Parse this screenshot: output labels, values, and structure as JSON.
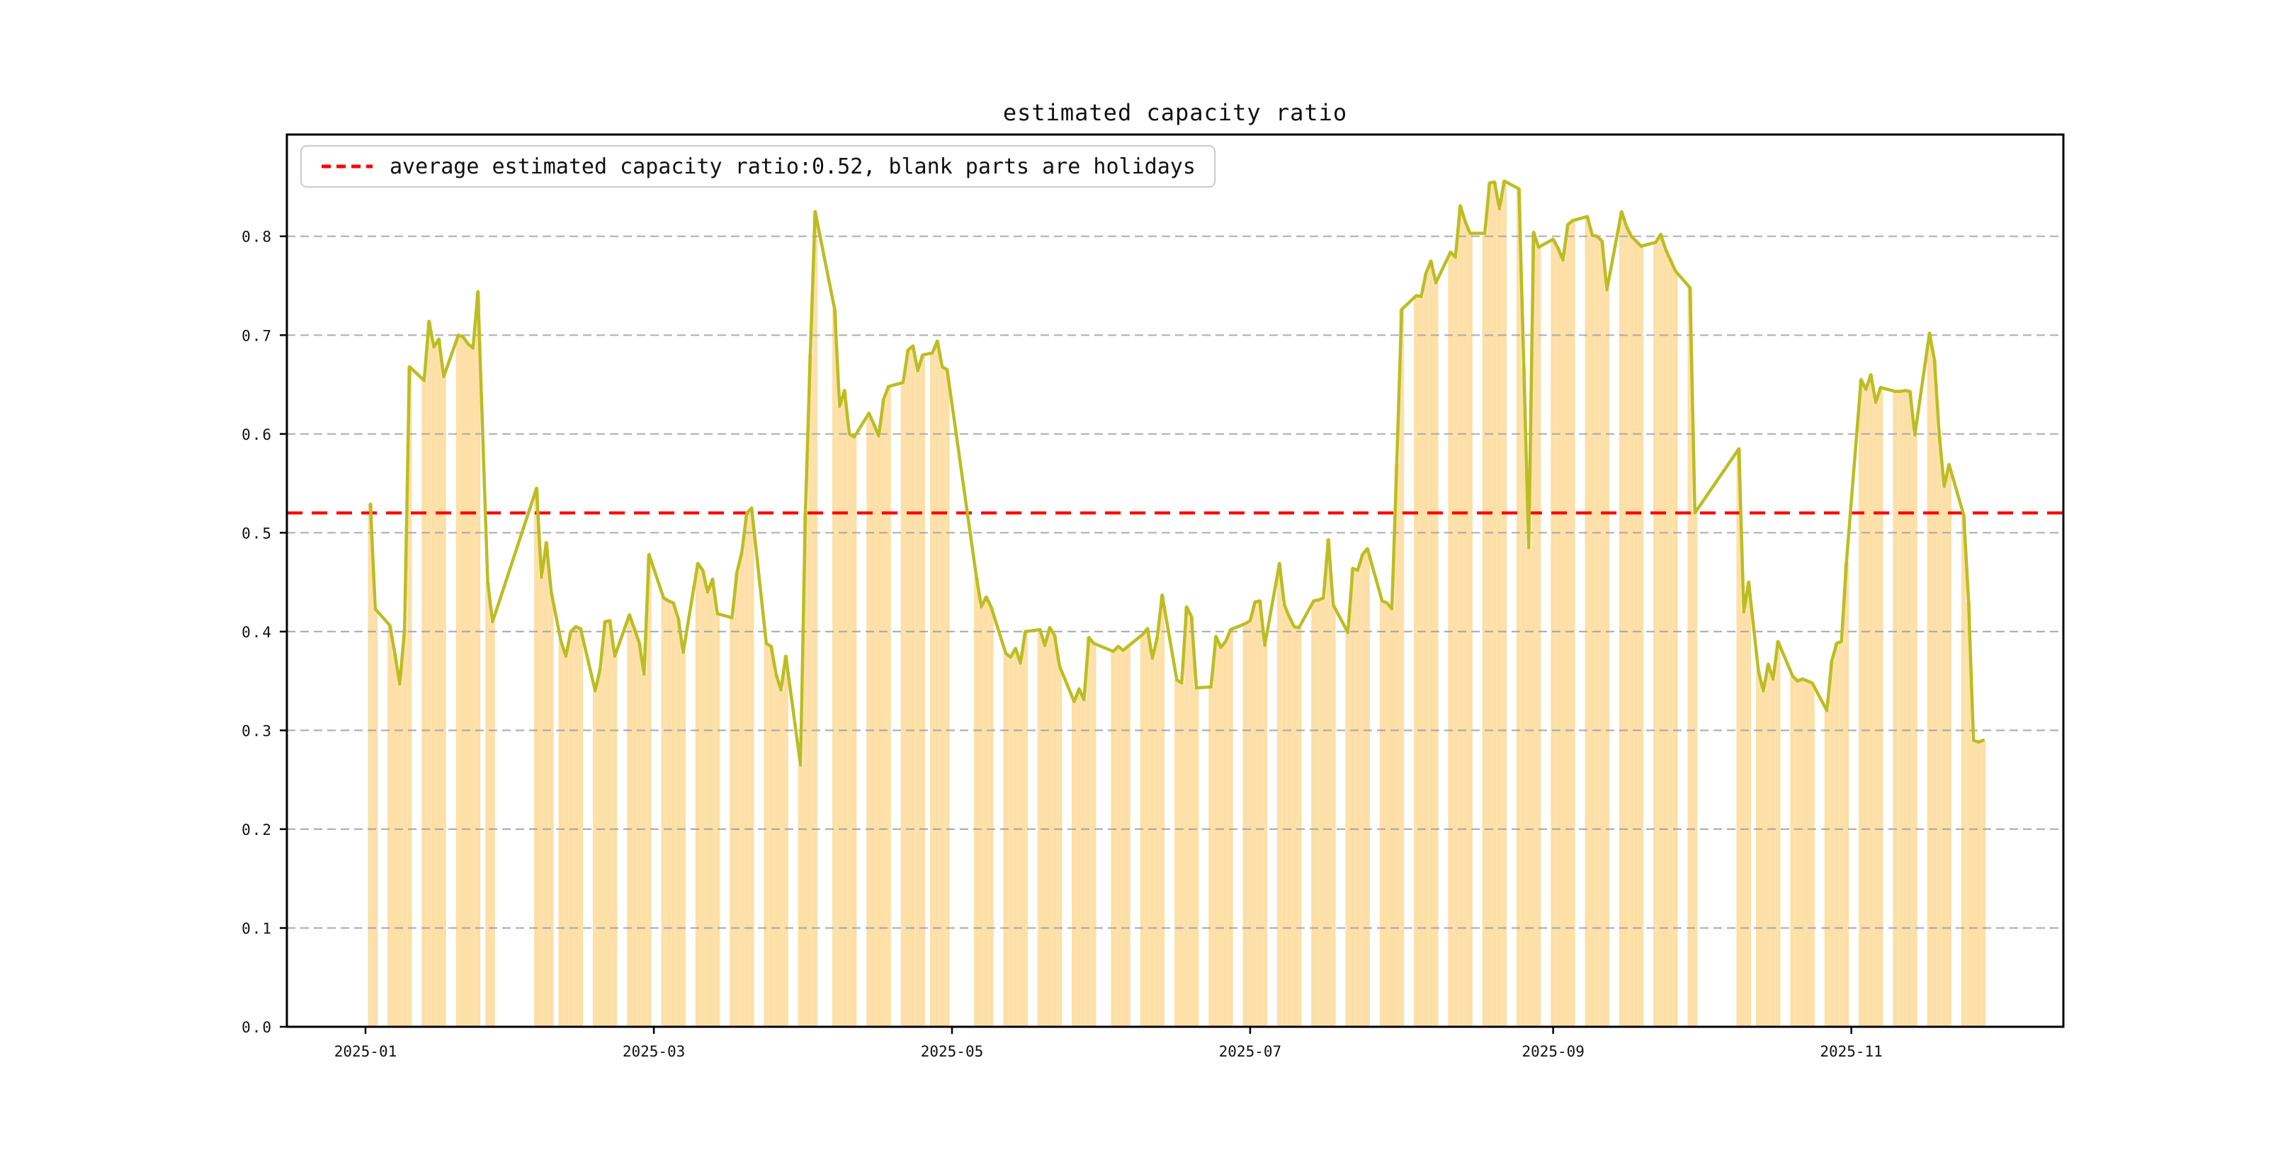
{
  "figure": {
    "background": "#ffffff",
    "title": "estimated capacity ratio"
  },
  "chart_data": {
    "type": "bar",
    "subtype": "daily bar + line, gaps on holidays",
    "title": "estimated capacity ratio",
    "legend": {
      "label": "average estimated capacity ratio:0.52, blank parts are holidays",
      "line_color": "#ff0000",
      "line_style": "dashed",
      "position": "upper left"
    },
    "average_value": 0.52,
    "grid": true,
    "ylim": [
      0.0,
      0.903
    ],
    "y_ticks": [
      "0.0",
      "0.1",
      "0.2",
      "0.3",
      "0.4",
      "0.5",
      "0.6",
      "0.7",
      "0.8"
    ],
    "x_ticks": [
      {
        "date": "2025-01-01",
        "label": "2025-01"
      },
      {
        "date": "2025-03-01",
        "label": "2025-03"
      },
      {
        "date": "2025-05-01",
        "label": "2025-05"
      },
      {
        "date": "2025-07-01",
        "label": "2025-07"
      },
      {
        "date": "2025-09-01",
        "label": "2025-09"
      },
      {
        "date": "2025-11-01",
        "label": "2025-11"
      }
    ],
    "colors": {
      "bar": "#fde0a8",
      "line": "#bcbd22",
      "grid": "#9e9e9e",
      "average_line": "#ff0000",
      "spine": "#000000"
    },
    "series": {
      "name": "estimated capacity ratio",
      "dates": [
        "2025-01-02",
        "2025-01-03",
        "2025-01-06",
        "2025-01-07",
        "2025-01-08",
        "2025-01-09",
        "2025-01-10",
        "2025-01-13",
        "2025-01-14",
        "2025-01-15",
        "2025-01-16",
        "2025-01-17",
        "2025-01-20",
        "2025-01-21",
        "2025-01-22",
        "2025-01-23",
        "2025-01-24",
        "2025-01-26",
        "2025-01-27",
        "2025-02-05",
        "2025-02-06",
        "2025-02-07",
        "2025-02-08",
        "2025-02-10",
        "2025-02-11",
        "2025-02-12",
        "2025-02-13",
        "2025-02-14",
        "2025-02-17",
        "2025-02-18",
        "2025-02-19",
        "2025-02-20",
        "2025-02-21",
        "2025-02-24",
        "2025-02-25",
        "2025-02-26",
        "2025-02-27",
        "2025-02-28",
        "2025-03-03",
        "2025-03-04",
        "2025-03-05",
        "2025-03-06",
        "2025-03-07",
        "2025-03-10",
        "2025-03-11",
        "2025-03-12",
        "2025-03-13",
        "2025-03-14",
        "2025-03-17",
        "2025-03-18",
        "2025-03-19",
        "2025-03-20",
        "2025-03-21",
        "2025-03-24",
        "2025-03-25",
        "2025-03-26",
        "2025-03-27",
        "2025-03-28",
        "2025-03-31",
        "2025-04-01",
        "2025-04-02",
        "2025-04-03",
        "2025-04-07",
        "2025-04-08",
        "2025-04-09",
        "2025-04-10",
        "2025-04-11",
        "2025-04-14",
        "2025-04-15",
        "2025-04-16",
        "2025-04-17",
        "2025-04-18",
        "2025-04-21",
        "2025-04-22",
        "2025-04-23",
        "2025-04-24",
        "2025-04-25",
        "2025-04-27",
        "2025-04-28",
        "2025-04-29",
        "2025-04-30",
        "2025-05-06",
        "2025-05-07",
        "2025-05-08",
        "2025-05-09",
        "2025-05-12",
        "2025-05-13",
        "2025-05-14",
        "2025-05-15",
        "2025-05-16",
        "2025-05-19",
        "2025-05-20",
        "2025-05-21",
        "2025-05-22",
        "2025-05-23",
        "2025-05-26",
        "2025-05-27",
        "2025-05-28",
        "2025-05-29",
        "2025-05-30",
        "2025-06-03",
        "2025-06-04",
        "2025-06-05",
        "2025-06-06",
        "2025-06-09",
        "2025-06-10",
        "2025-06-11",
        "2025-06-12",
        "2025-06-13",
        "2025-06-16",
        "2025-06-17",
        "2025-06-18",
        "2025-06-19",
        "2025-06-20",
        "2025-06-23",
        "2025-06-24",
        "2025-06-25",
        "2025-06-26",
        "2025-06-27",
        "2025-06-30",
        "2025-07-01",
        "2025-07-02",
        "2025-07-03",
        "2025-07-04",
        "2025-07-07",
        "2025-07-08",
        "2025-07-09",
        "2025-07-10",
        "2025-07-11",
        "2025-07-14",
        "2025-07-15",
        "2025-07-16",
        "2025-07-17",
        "2025-07-18",
        "2025-07-21",
        "2025-07-22",
        "2025-07-23",
        "2025-07-24",
        "2025-07-25",
        "2025-07-28",
        "2025-07-29",
        "2025-07-30",
        "2025-07-31",
        "2025-08-01",
        "2025-08-04",
        "2025-08-05",
        "2025-08-06",
        "2025-08-07",
        "2025-08-08",
        "2025-08-11",
        "2025-08-12",
        "2025-08-13",
        "2025-08-14",
        "2025-08-15",
        "2025-08-18",
        "2025-08-19",
        "2025-08-20",
        "2025-08-21",
        "2025-08-22",
        "2025-08-25",
        "2025-08-26",
        "2025-08-27",
        "2025-08-28",
        "2025-08-29",
        "2025-09-01",
        "2025-09-02",
        "2025-09-03",
        "2025-09-04",
        "2025-09-05",
        "2025-09-08",
        "2025-09-09",
        "2025-09-10",
        "2025-09-11",
        "2025-09-12",
        "2025-09-15",
        "2025-09-16",
        "2025-09-17",
        "2025-09-18",
        "2025-09-19",
        "2025-09-22",
        "2025-09-23",
        "2025-09-24",
        "2025-09-25",
        "2025-09-26",
        "2025-09-29",
        "2025-09-30",
        "2025-10-09",
        "2025-10-10",
        "2025-10-11",
        "2025-10-13",
        "2025-10-14",
        "2025-10-15",
        "2025-10-16",
        "2025-10-17",
        "2025-10-20",
        "2025-10-21",
        "2025-10-22",
        "2025-10-23",
        "2025-10-24",
        "2025-10-27",
        "2025-10-28",
        "2025-10-29",
        "2025-10-30",
        "2025-10-31",
        "2025-11-03",
        "2025-11-04",
        "2025-11-05",
        "2025-11-06",
        "2025-11-07",
        "2025-11-10",
        "2025-11-11",
        "2025-11-12",
        "2025-11-13",
        "2025-11-14",
        "2025-11-17",
        "2025-11-18",
        "2025-11-19",
        "2025-11-20",
        "2025-11-21",
        "2025-11-24",
        "2025-11-25",
        "2025-11-26",
        "2025-11-27",
        "2025-11-28"
      ],
      "values": [
        0.529,
        0.423,
        0.406,
        0.378,
        0.347,
        0.402,
        0.668,
        0.654,
        0.714,
        0.688,
        0.696,
        0.658,
        0.7,
        0.698,
        0.691,
        0.687,
        0.744,
        0.45,
        0.41,
        0.545,
        0.455,
        0.49,
        0.44,
        0.39,
        0.375,
        0.4,
        0.405,
        0.403,
        0.34,
        0.362,
        0.41,
        0.411,
        0.375,
        0.417,
        0.403,
        0.389,
        0.357,
        0.478,
        0.434,
        0.431,
        0.429,
        0.413,
        0.379,
        0.469,
        0.462,
        0.44,
        0.453,
        0.418,
        0.414,
        0.46,
        0.48,
        0.52,
        0.525,
        0.388,
        0.385,
        0.357,
        0.341,
        0.375,
        0.265,
        0.52,
        0.68,
        0.825,
        0.726,
        0.628,
        0.644,
        0.6,
        0.597,
        0.621,
        0.61,
        0.598,
        0.635,
        0.648,
        0.652,
        0.685,
        0.689,
        0.664,
        0.68,
        0.682,
        0.694,
        0.668,
        0.665,
        0.455,
        0.425,
        0.435,
        0.425,
        0.378,
        0.374,
        0.383,
        0.368,
        0.4,
        0.402,
        0.386,
        0.404,
        0.396,
        0.365,
        0.329,
        0.342,
        0.331,
        0.394,
        0.388,
        0.38,
        0.385,
        0.381,
        0.385,
        0.397,
        0.403,
        0.373,
        0.394,
        0.437,
        0.351,
        0.348,
        0.425,
        0.415,
        0.343,
        0.344,
        0.395,
        0.384,
        0.39,
        0.402,
        0.408,
        0.411,
        0.43,
        0.431,
        0.386,
        0.469,
        0.427,
        0.415,
        0.405,
        0.404,
        0.431,
        0.432,
        0.434,
        0.493,
        0.427,
        0.399,
        0.464,
        0.462,
        0.478,
        0.484,
        0.431,
        0.429,
        0.423,
        0.57,
        0.726,
        0.74,
        0.739,
        0.763,
        0.775,
        0.753,
        0.784,
        0.779,
        0.831,
        0.815,
        0.803,
        0.803,
        0.854,
        0.855,
        0.828,
        0.856,
        0.848,
        0.667,
        0.485,
        0.804,
        0.789,
        0.797,
        0.788,
        0.776,
        0.812,
        0.816,
        0.82,
        0.801,
        0.8,
        0.795,
        0.746,
        0.825,
        0.81,
        0.8,
        0.795,
        0.79,
        0.794,
        0.802,
        0.787,
        0.776,
        0.765,
        0.748,
        0.52,
        0.585,
        0.42,
        0.45,
        0.36,
        0.34,
        0.367,
        0.352,
        0.39,
        0.355,
        0.35,
        0.352,
        0.35,
        0.348,
        0.32,
        0.37,
        0.388,
        0.39,
        0.47,
        0.655,
        0.645,
        0.66,
        0.632,
        0.647,
        0.643,
        0.643,
        0.644,
        0.643,
        0.599,
        0.702,
        0.675,
        0.599,
        0.547,
        0.569,
        0.518,
        0.43,
        0.29,
        0.288,
        0.29
      ]
    }
  }
}
